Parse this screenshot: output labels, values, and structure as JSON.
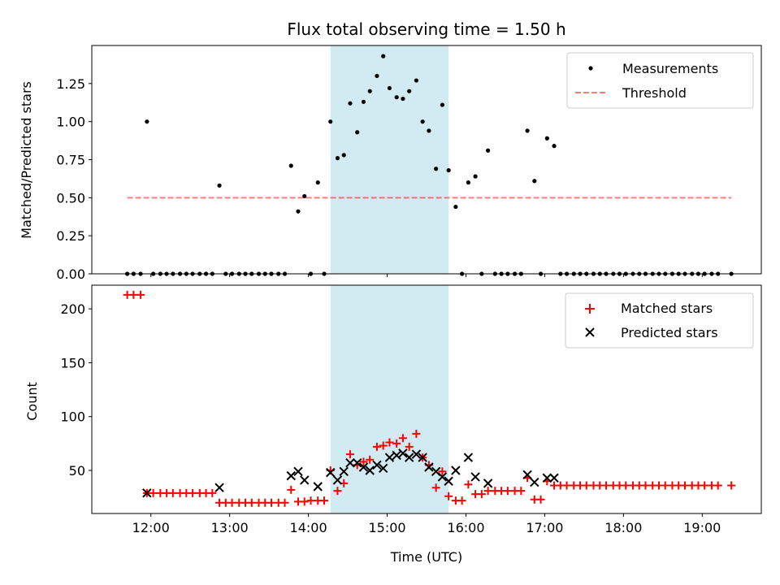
{
  "chart_data": [
    {
      "type": "scatter",
      "title": "Flux total observing time = 1.50 h",
      "xlabel": "",
      "ylabel": "Matched/Predicted stars",
      "xlim": [
        11.25,
        19.75
      ],
      "ylim": [
        0.0,
        1.5
      ],
      "yticks": [
        0.0,
        0.25,
        0.5,
        0.75,
        1.0,
        1.25
      ],
      "ytick_labels": [
        "0.00",
        "0.25",
        "0.50",
        "0.75",
        "1.00",
        "1.25"
      ],
      "legend_position": "top-right",
      "highlight_span": {
        "x0": 14.28,
        "x1": 15.78,
        "color": "#add8e6"
      },
      "series": [
        {
          "name": "Measurements",
          "marker": "dot",
          "color": "#000000",
          "points": [
            [
              11.7,
              0
            ],
            [
              11.78,
              0
            ],
            [
              11.87,
              0
            ],
            [
              11.95,
              1.0
            ],
            [
              12.03,
              0
            ],
            [
              12.12,
              0
            ],
            [
              12.2,
              0
            ],
            [
              12.28,
              0
            ],
            [
              12.37,
              0
            ],
            [
              12.45,
              0
            ],
            [
              12.53,
              0
            ],
            [
              12.62,
              0
            ],
            [
              12.7,
              0
            ],
            [
              12.78,
              0
            ],
            [
              12.87,
              0.58
            ],
            [
              12.95,
              0
            ],
            [
              13.03,
              0
            ],
            [
              13.12,
              0
            ],
            [
              13.2,
              0
            ],
            [
              13.28,
              0
            ],
            [
              13.37,
              0
            ],
            [
              13.45,
              0
            ],
            [
              13.53,
              0
            ],
            [
              13.62,
              0
            ],
            [
              13.7,
              0
            ],
            [
              13.78,
              0.71
            ],
            [
              13.87,
              0.41
            ],
            [
              13.95,
              0.51
            ],
            [
              14.03,
              0
            ],
            [
              14.12,
              0.6
            ],
            [
              14.2,
              0
            ],
            [
              14.28,
              1.0
            ],
            [
              14.37,
              0.76
            ],
            [
              14.45,
              0.78
            ],
            [
              14.53,
              1.12
            ],
            [
              14.62,
              0.93
            ],
            [
              14.7,
              1.13
            ],
            [
              14.78,
              1.2
            ],
            [
              14.87,
              1.3
            ],
            [
              14.95,
              1.43
            ],
            [
              15.03,
              1.22
            ],
            [
              15.12,
              1.16
            ],
            [
              15.2,
              1.15
            ],
            [
              15.28,
              1.2
            ],
            [
              15.37,
              1.27
            ],
            [
              15.45,
              1.0
            ],
            [
              15.53,
              0.94
            ],
            [
              15.62,
              0.69
            ],
            [
              15.7,
              1.11
            ],
            [
              15.78,
              0.68
            ],
            [
              15.87,
              0.44
            ],
            [
              15.95,
              0
            ],
            [
              16.03,
              0.6
            ],
            [
              16.12,
              0.64
            ],
            [
              16.2,
              0
            ],
            [
              16.28,
              0.81
            ],
            [
              16.37,
              0
            ],
            [
              16.45,
              0
            ],
            [
              16.53,
              0
            ],
            [
              16.62,
              0
            ],
            [
              16.7,
              0
            ],
            [
              16.78,
              0.94
            ],
            [
              16.87,
              0.61
            ],
            [
              16.95,
              0
            ],
            [
              17.03,
              0.89
            ],
            [
              17.12,
              0.84
            ],
            [
              17.2,
              0
            ],
            [
              17.28,
              0
            ],
            [
              17.37,
              0
            ],
            [
              17.45,
              0
            ],
            [
              17.53,
              0
            ],
            [
              17.62,
              0
            ],
            [
              17.7,
              0
            ],
            [
              17.78,
              0
            ],
            [
              17.87,
              0
            ],
            [
              17.95,
              0
            ],
            [
              18.03,
              0
            ],
            [
              18.12,
              0
            ],
            [
              18.2,
              0
            ],
            [
              18.28,
              0
            ],
            [
              18.37,
              0
            ],
            [
              18.45,
              0
            ],
            [
              18.53,
              0
            ],
            [
              18.62,
              0
            ],
            [
              18.7,
              0
            ],
            [
              18.78,
              0
            ],
            [
              18.87,
              0
            ],
            [
              18.95,
              0
            ],
            [
              19.03,
              0
            ],
            [
              19.12,
              0
            ],
            [
              19.2,
              0
            ],
            [
              19.37,
              0
            ]
          ]
        },
        {
          "name": "Threshold",
          "type": "line",
          "style": "dashed",
          "color": "#ff0000",
          "alpha": 0.5,
          "points": [
            [
              11.7,
              0.5
            ],
            [
              19.37,
              0.5
            ]
          ]
        }
      ]
    },
    {
      "type": "scatter",
      "title": "",
      "xlabel": "Time (UTC)",
      "ylabel": "Count",
      "xlim": [
        11.25,
        19.75
      ],
      "ylim": [
        10,
        222
      ],
      "yticks": [
        50,
        100,
        150,
        200
      ],
      "ytick_labels": [
        "50",
        "100",
        "150",
        "200"
      ],
      "xticks": [
        12,
        13,
        14,
        15,
        16,
        17,
        18,
        19
      ],
      "xtick_labels": [
        "12:00",
        "13:00",
        "14:00",
        "15:00",
        "16:00",
        "17:00",
        "18:00",
        "19:00"
      ],
      "legend_position": "top-right",
      "highlight_span": {
        "x0": 14.28,
        "x1": 15.78,
        "color": "#add8e6"
      },
      "series": [
        {
          "name": "Matched stars",
          "marker": "plus",
          "color": "#ff0000",
          "points": [
            [
              11.7,
              213
            ],
            [
              11.78,
              213
            ],
            [
              11.87,
              213
            ],
            [
              11.95,
              29
            ],
            [
              12.03,
              29
            ],
            [
              12.12,
              29
            ],
            [
              12.2,
              29
            ],
            [
              12.28,
              29
            ],
            [
              12.37,
              29
            ],
            [
              12.45,
              29
            ],
            [
              12.53,
              29
            ],
            [
              12.62,
              29
            ],
            [
              12.7,
              29
            ],
            [
              12.78,
              29
            ],
            [
              12.87,
              20
            ],
            [
              12.95,
              20
            ],
            [
              13.03,
              20
            ],
            [
              13.12,
              20
            ],
            [
              13.2,
              20
            ],
            [
              13.28,
              20
            ],
            [
              13.37,
              20
            ],
            [
              13.45,
              20
            ],
            [
              13.53,
              20
            ],
            [
              13.62,
              20
            ],
            [
              13.7,
              20
            ],
            [
              13.78,
              32
            ],
            [
              13.87,
              21
            ],
            [
              13.95,
              21
            ],
            [
              14.03,
              22
            ],
            [
              14.12,
              22
            ],
            [
              14.2,
              22
            ],
            [
              14.28,
              50
            ],
            [
              14.37,
              31
            ],
            [
              14.45,
              38
            ],
            [
              14.53,
              65
            ],
            [
              14.62,
              55
            ],
            [
              14.7,
              58
            ],
            [
              14.78,
              60
            ],
            [
              14.87,
              72
            ],
            [
              14.95,
              73
            ],
            [
              15.03,
              76
            ],
            [
              15.12,
              75
            ],
            [
              15.2,
              80
            ],
            [
              15.28,
              72
            ],
            [
              15.37,
              84
            ],
            [
              15.45,
              62
            ],
            [
              15.53,
              55
            ],
            [
              15.62,
              34
            ],
            [
              15.7,
              49
            ],
            [
              15.78,
              26
            ],
            [
              15.87,
              22
            ],
            [
              15.95,
              22
            ],
            [
              16.03,
              37
            ],
            [
              16.12,
              28
            ],
            [
              16.2,
              28
            ],
            [
              16.28,
              31
            ],
            [
              16.37,
              31
            ],
            [
              16.45,
              31
            ],
            [
              16.53,
              31
            ],
            [
              16.62,
              31
            ],
            [
              16.7,
              31
            ],
            [
              16.78,
              43
            ],
            [
              16.87,
              23
            ],
            [
              16.95,
              23
            ],
            [
              17.03,
              40
            ],
            [
              17.12,
              36
            ],
            [
              17.2,
              36
            ],
            [
              17.28,
              36
            ],
            [
              17.37,
              36
            ],
            [
              17.45,
              36
            ],
            [
              17.53,
              36
            ],
            [
              17.62,
              36
            ],
            [
              17.7,
              36
            ],
            [
              17.78,
              36
            ],
            [
              17.87,
              36
            ],
            [
              17.95,
              36
            ],
            [
              18.03,
              36
            ],
            [
              18.12,
              36
            ],
            [
              18.2,
              36
            ],
            [
              18.28,
              36
            ],
            [
              18.37,
              36
            ],
            [
              18.45,
              36
            ],
            [
              18.53,
              36
            ],
            [
              18.62,
              36
            ],
            [
              18.7,
              36
            ],
            [
              18.78,
              36
            ],
            [
              18.87,
              36
            ],
            [
              18.95,
              36
            ],
            [
              19.03,
              36
            ],
            [
              19.12,
              36
            ],
            [
              19.2,
              36
            ],
            [
              19.37,
              36
            ]
          ]
        },
        {
          "name": "Predicted stars",
          "marker": "x",
          "color": "#000000",
          "points": [
            [
              11.95,
              29
            ],
            [
              12.87,
              34
            ],
            [
              13.78,
              45
            ],
            [
              13.87,
              49
            ],
            [
              13.95,
              41
            ],
            [
              14.12,
              35
            ],
            [
              14.28,
              48
            ],
            [
              14.37,
              41
            ],
            [
              14.45,
              49
            ],
            [
              14.53,
              57
            ],
            [
              14.62,
              57
            ],
            [
              14.7,
              53
            ],
            [
              14.78,
              50
            ],
            [
              14.87,
              55
            ],
            [
              14.95,
              52
            ],
            [
              15.03,
              62
            ],
            [
              15.12,
              64
            ],
            [
              15.2,
              66
            ],
            [
              15.28,
              62
            ],
            [
              15.37,
              65
            ],
            [
              15.45,
              62
            ],
            [
              15.53,
              53
            ],
            [
              15.62,
              49
            ],
            [
              15.7,
              44
            ],
            [
              15.78,
              40
            ],
            [
              15.87,
              50
            ],
            [
              16.03,
              62
            ],
            [
              16.12,
              44
            ],
            [
              16.28,
              38
            ],
            [
              16.78,
              46
            ],
            [
              16.87,
              39
            ],
            [
              17.03,
              43
            ],
            [
              17.12,
              43
            ]
          ]
        }
      ]
    }
  ]
}
